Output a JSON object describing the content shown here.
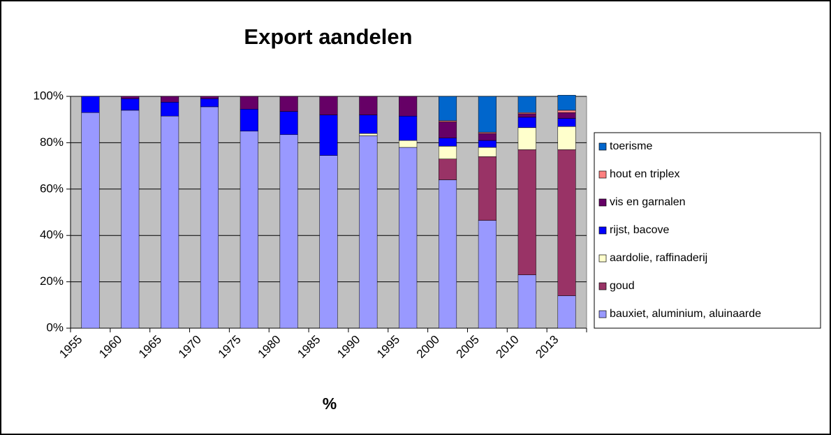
{
  "chart_data": {
    "type": "stacked-bar-100",
    "title": "Export aandelen",
    "x_label": "%",
    "categories": [
      "1955",
      "1960",
      "1965",
      "1970",
      "1975",
      "1980",
      "1985",
      "1990",
      "1995",
      "2000",
      "2005",
      "2010",
      "2013"
    ],
    "series": [
      {
        "name": "bauxiet, aluminium, aluinaarde",
        "color": "#9999ff",
        "values": [
          93,
          94,
          91.5,
          95.5,
          85,
          83.5,
          74.5,
          83,
          78,
          64,
          46.5,
          23,
          14
        ]
      },
      {
        "name": "goud",
        "color": "#993366",
        "values": [
          0,
          0,
          0,
          0,
          0,
          0,
          0,
          0,
          0,
          9,
          27.5,
          54,
          63
        ]
      },
      {
        "name": "aardolie, raffinaderij",
        "color": "#ffffcc",
        "values": [
          0,
          0,
          0,
          0,
          0,
          0,
          0,
          1,
          3,
          5.5,
          4,
          9.5,
          10
        ]
      },
      {
        "name": "rijst, bacove",
        "color": "#0000ff",
        "values": [
          7,
          5,
          6,
          3.5,
          9.5,
          10,
          17.5,
          8,
          10.5,
          3.5,
          3,
          4.5,
          3.5
        ]
      },
      {
        "name": "vis en garnalen",
        "color": "#660066",
        "values": [
          0,
          1,
          2.5,
          1,
          5.5,
          6.5,
          8,
          8,
          8.5,
          7,
          3,
          1.5,
          2.5
        ]
      },
      {
        "name": "hout en triplex",
        "color": "#ff8080",
        "values": [
          0,
          0,
          0,
          0,
          0,
          0,
          0,
          0,
          0,
          0.5,
          0.5,
          0.5,
          1
        ]
      },
      {
        "name": "toerisme",
        "color": "#0066cc",
        "values": [
          0,
          0,
          0,
          0,
          0,
          0,
          0,
          0,
          0,
          10.5,
          15.5,
          7,
          6.5
        ]
      }
    ],
    "ylim": [
      0,
      100
    ],
    "yticks": [
      {
        "value": 0,
        "label": "0%"
      },
      {
        "value": 20,
        "label": "20%"
      },
      {
        "value": 40,
        "label": "40%"
      },
      {
        "value": 60,
        "label": "60%"
      },
      {
        "value": 80,
        "label": "80%"
      },
      {
        "value": 100,
        "label": "100%"
      }
    ],
    "grid": true,
    "legend": "right"
  }
}
